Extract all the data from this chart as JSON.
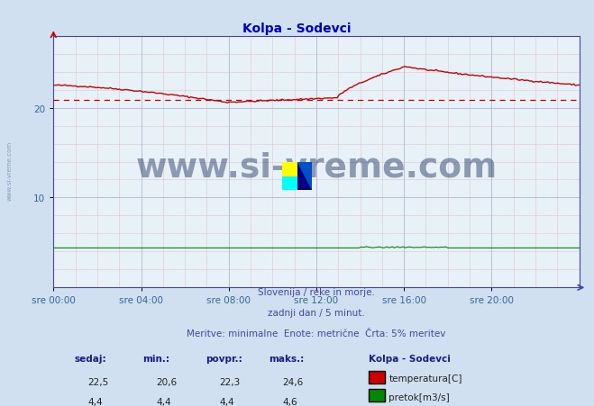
{
  "title": "Kolpa - Sodevci",
  "title_color": "#0000cc",
  "bg_color": "#d0e0f0",
  "plot_bg_color": "#e8f0f8",
  "xlabel_ticks": [
    "sre 00:00",
    "sre 04:00",
    "sre 08:00",
    "sre 12:00",
    "sre 16:00",
    "sre 20:00"
  ],
  "yticks": [
    10,
    20
  ],
  "ymax": 28,
  "ymin": 0,
  "temp_color": "#cc0000",
  "pretok_color": "#008800",
  "dashed_line_value": 20.9,
  "dashed_line_color": "#cc0000",
  "watermark_text": "www.si-vreme.com",
  "watermark_color": "#1a3060",
  "watermark_alpha": 0.45,
  "footer_line1": "Slovenija / reke in morje.",
  "footer_line2": "zadnji dan / 5 minut.",
  "footer_line3": "Meritve: minimalne  Enote: metrične  Črta: 5% meritev",
  "footer_color": "#4444aa",
  "table_headers": [
    "sedaj:",
    "min.:",
    "povpr.:",
    "maks.:"
  ],
  "table_temp": [
    "22,5",
    "20,6",
    "22,3",
    "24,6"
  ],
  "table_pretok": [
    "4,4",
    "4,4",
    "4,4",
    "4,6"
  ],
  "legend_title": "Kolpa - Sodevci",
  "legend_temp_label": "temperatura[C]",
  "legend_pretok_label": "pretok[m3/s]",
  "num_points": 288,
  "axis_color": "#4444aa",
  "tick_color": "#336699",
  "spine_color": "#4444aa",
  "minor_grid_color": "#ddc8c8",
  "major_grid_color": "#b0bcd0"
}
